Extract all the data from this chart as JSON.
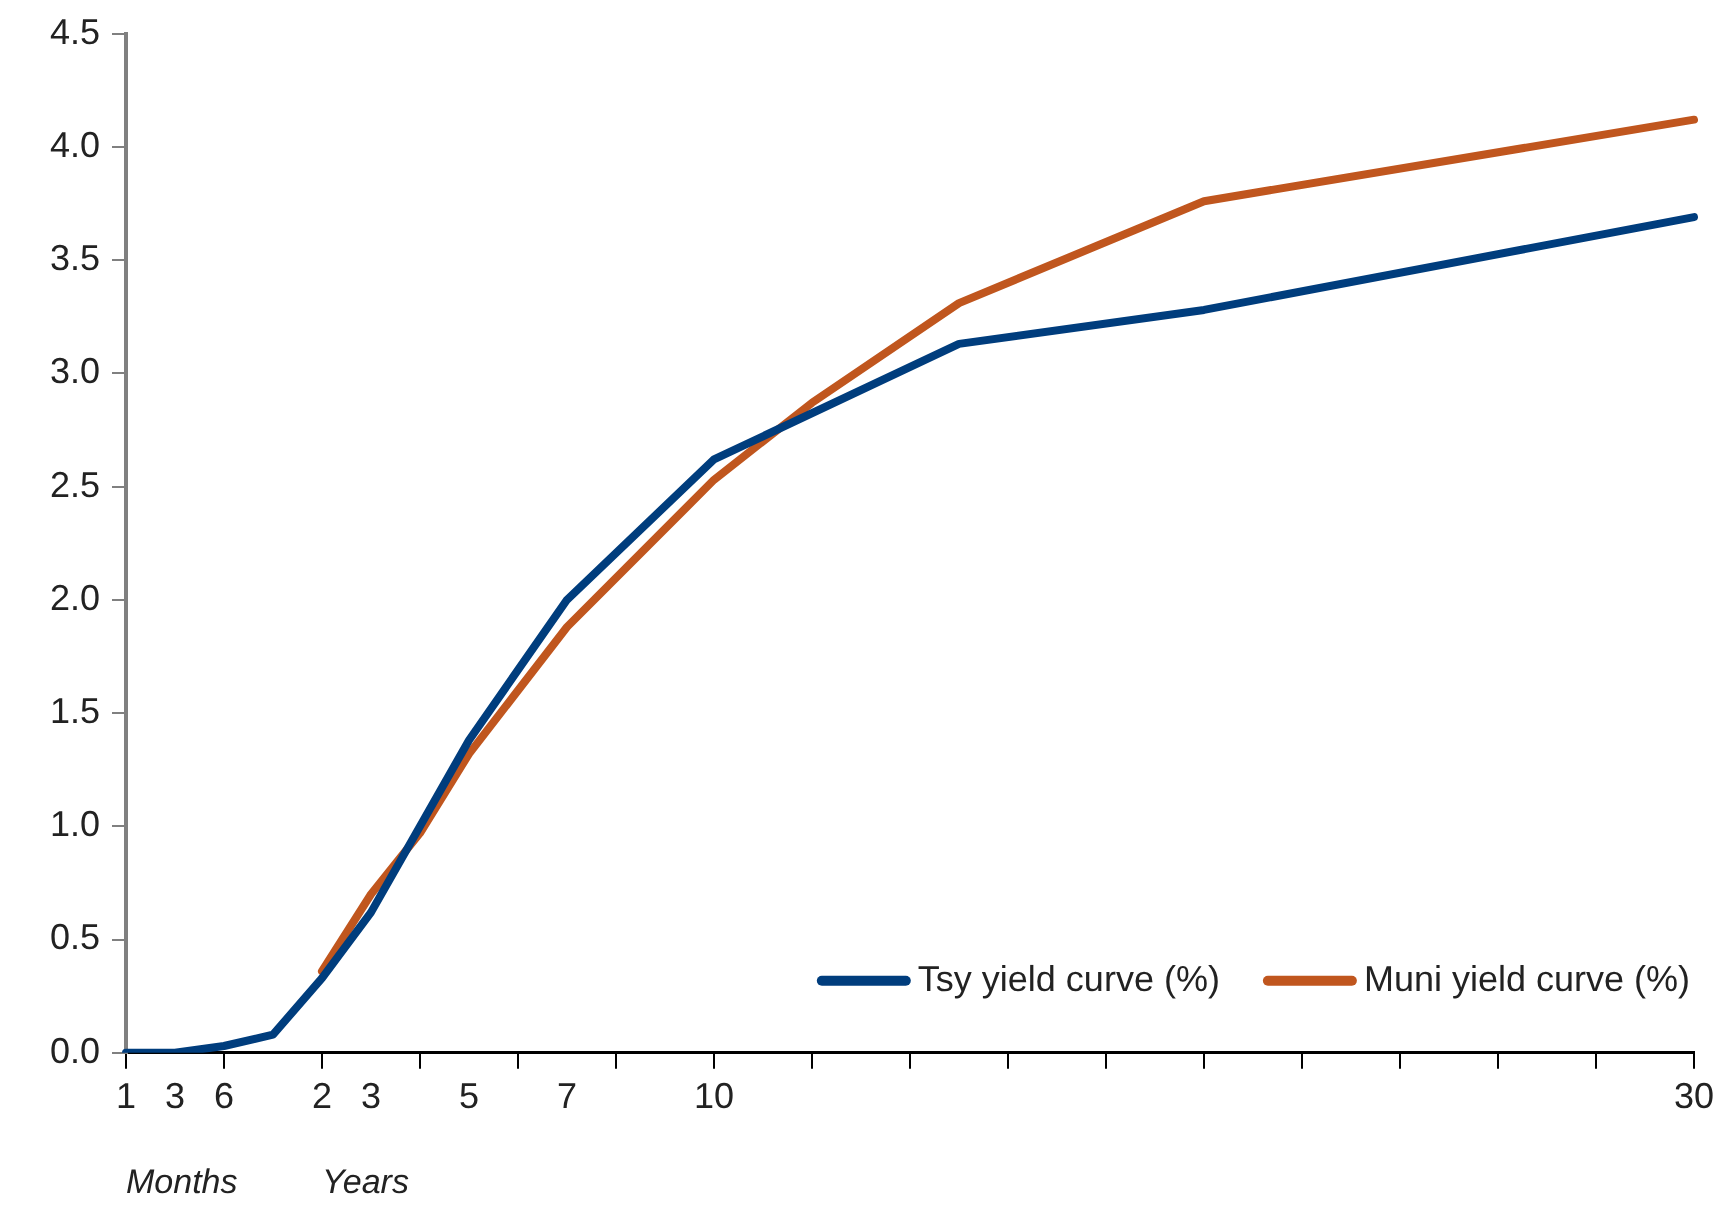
{
  "chart_data": {
    "type": "line",
    "categories": [
      "1",
      "3",
      "6",
      null,
      "2",
      "3",
      null,
      "5",
      null,
      "7",
      null,
      null,
      "10",
      null,
      null,
      null,
      null,
      null,
      null,
      null,
      null,
      null,
      null,
      null,
      null,
      null,
      null,
      null,
      null,
      null,
      null,
      null,
      "30"
    ],
    "series": [
      {
        "name": "Tsy yield curve (%)",
        "color": "#003d7d",
        "values": [
          0,
          0,
          0.03,
          0.08,
          0.33,
          0.62,
          null,
          1.38,
          null,
          2.0,
          null,
          null,
          2.62,
          null,
          null,
          null,
          null,
          3.13,
          null,
          null,
          null,
          null,
          3.28,
          null,
          null,
          null,
          null,
          null,
          null,
          null,
          null,
          null,
          3.69
        ]
      },
      {
        "name": "Muni yield curve (%)",
        "color": "#c0561e",
        "values": [
          null,
          null,
          null,
          null,
          0.36,
          0.7,
          0.97,
          1.32,
          null,
          1.88,
          null,
          null,
          2.53,
          null,
          2.87,
          null,
          null,
          3.31,
          null,
          null,
          null,
          null,
          3.76,
          null,
          null,
          null,
          null,
          null,
          null,
          null,
          null,
          null,
          4.12
        ]
      }
    ],
    "ylim": [
      0,
      4.5
    ],
    "yticks": [
      {
        "value": 0,
        "label": "0.0"
      },
      {
        "value": 0.5,
        "label": "0.5"
      },
      {
        "value": 1,
        "label": "1.0"
      },
      {
        "value": 1.5,
        "label": "1.5"
      },
      {
        "value": 2,
        "label": "2.0"
      },
      {
        "value": 2.5,
        "label": "2.5"
      },
      {
        "value": 3,
        "label": "3.0"
      },
      {
        "value": 3.5,
        "label": "3.5"
      },
      {
        "value": 4,
        "label": "4.0"
      },
      {
        "value": 4.5,
        "label": "4.5"
      }
    ],
    "grid": false,
    "legend": "bottom right",
    "marker": "none",
    "line_style": "solid",
    "annotations": [
      "Months",
      "Years"
    ]
  }
}
